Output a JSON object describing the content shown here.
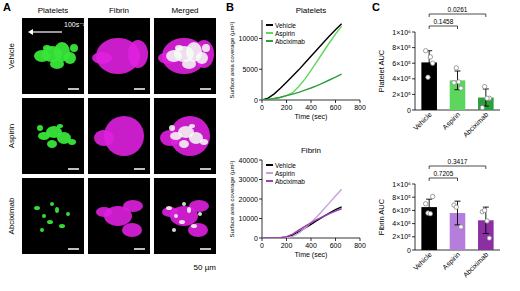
{
  "panel_labels": [
    "A",
    "B",
    "C"
  ],
  "panel_a": {
    "columns": [
      "Platelets",
      "Fibrin",
      "Merged"
    ],
    "rows": [
      "Vehicle",
      "Aspirin",
      "Abciximab"
    ],
    "flow_label": "100s⁻¹",
    "scale_label": "50 µm"
  },
  "chart_data": [
    {
      "type": "line",
      "title": "Platelets",
      "x_label": "Time (sec)",
      "y_label": "Surface area coverage (µm²)",
      "x": [
        0,
        50,
        100,
        150,
        200,
        250,
        300,
        350,
        400,
        450,
        500,
        550,
        600,
        650
      ],
      "series": [
        {
          "name": "Vehicle",
          "color": "#000000",
          "values": [
            0,
            300,
            1000,
            1900,
            2900,
            3900,
            4900,
            6000,
            7100,
            8200,
            9300,
            10400,
            11400,
            12400
          ]
        },
        {
          "name": "Aspirin",
          "color": "#5cd65c",
          "values": [
            0,
            100,
            200,
            400,
            700,
            1200,
            2200,
            3400,
            4800,
            6300,
            7800,
            9300,
            10700,
            12000
          ]
        },
        {
          "name": "Abciximab",
          "color": "#2e9e3e",
          "values": [
            0,
            100,
            250,
            450,
            700,
            950,
            1250,
            1600,
            1950,
            2350,
            2800,
            3250,
            3700,
            4200
          ]
        }
      ],
      "xlim": [
        0,
        800
      ],
      "xticks": [
        0,
        200,
        400,
        600,
        800
      ],
      "ylim": [
        0,
        13000
      ],
      "yticks": [
        0,
        5000,
        10000
      ],
      "legend": "upper left"
    },
    {
      "type": "line",
      "title": "Fibrin",
      "x_label": "Time (sec)",
      "y_label": "Surface area coverage (µm²)",
      "x": [
        0,
        50,
        100,
        150,
        200,
        250,
        300,
        350,
        400,
        450,
        500,
        550,
        600,
        650
      ],
      "series": [
        {
          "name": "Vehicle",
          "color": "#000000",
          "values": [
            0,
            0,
            0,
            100,
            400,
            1500,
            3200,
            5000,
            7000,
            9000,
            11000,
            12800,
            14500,
            16000
          ]
        },
        {
          "name": "Aspirin",
          "color": "#c9a0dc",
          "values": [
            0,
            0,
            0,
            0,
            200,
            800,
            2500,
            5000,
            8000,
            11000,
            14500,
            18000,
            21500,
            25000
          ]
        },
        {
          "name": "Abciximab",
          "color": "#9a3fb0",
          "values": [
            0,
            0,
            0,
            200,
            700,
            2000,
            4000,
            6000,
            7800,
            9500,
            11000,
            12500,
            13800,
            15000
          ]
        }
      ],
      "xlim": [
        0,
        800
      ],
      "xticks": [
        0,
        200,
        400,
        600,
        800
      ],
      "ylim": [
        0,
        40000
      ],
      "yticks": [
        0,
        10000,
        20000,
        30000,
        40000
      ],
      "legend": "upper left"
    },
    {
      "type": "bar",
      "y_label": "Platelet AUC",
      "categories": [
        "Vehicle",
        "Aspirin",
        "Abciximab"
      ],
      "values": [
        610000,
        380000,
        160000
      ],
      "errors": [
        150000,
        120000,
        110000
      ],
      "points": [
        [
          760000,
          600000,
          420000,
          680000
        ],
        [
          350000,
          280000,
          540000,
          360000
        ],
        [
          30000,
          150000,
          300000,
          150000
        ]
      ],
      "colors": [
        "#000000",
        "#5cd65c",
        "#2e9e3e"
      ],
      "ylim": [
        0,
        1000000
      ],
      "yticks": [
        0,
        {
          "value": 200000,
          "label": "2×10⁵"
        },
        {
          "value": 400000,
          "label": "4×10⁵"
        },
        {
          "value": 600000,
          "label": "6×10⁵"
        },
        {
          "value": 800000,
          "label": "8×10⁵"
        },
        {
          "value": 1000000,
          "label": "1×10⁶"
        }
      ],
      "comparisons": [
        {
          "from": "Vehicle",
          "to": "Aspirin",
          "label": "0.1458"
        },
        {
          "from": "Vehicle",
          "to": "Abciximab",
          "label": "0.0261"
        }
      ]
    },
    {
      "type": "bar",
      "y_label": "Fibrin AUC",
      "categories": [
        "Vehicle",
        "Aspirin",
        "Abciximab"
      ],
      "values": [
        650000,
        560000,
        450000
      ],
      "errors": [
        120000,
        180000,
        200000
      ],
      "points": [
        [
          700000,
          810000,
          560000,
          550000
        ],
        [
          680000,
          350000,
          650000
        ],
        [
          580000,
          180000,
          600000,
          440000
        ]
      ],
      "colors": [
        "#000000",
        "#b57edc",
        "#8b2fa3"
      ],
      "ylim": [
        0,
        1000000
      ],
      "yticks": [
        0,
        {
          "value": 200000,
          "label": "2×10⁵"
        },
        {
          "value": 400000,
          "label": "4×10⁵"
        },
        {
          "value": 600000,
          "label": "6×10⁵"
        },
        {
          "value": 800000,
          "label": "8×10⁵"
        },
        {
          "value": 1000000,
          "label": "1×10⁶"
        }
      ],
      "comparisons": [
        {
          "from": "Vehicle",
          "to": "Aspirin",
          "label": "0.7205"
        },
        {
          "from": "Vehicle",
          "to": "Abciximab",
          "label": "0.3417"
        }
      ]
    }
  ]
}
